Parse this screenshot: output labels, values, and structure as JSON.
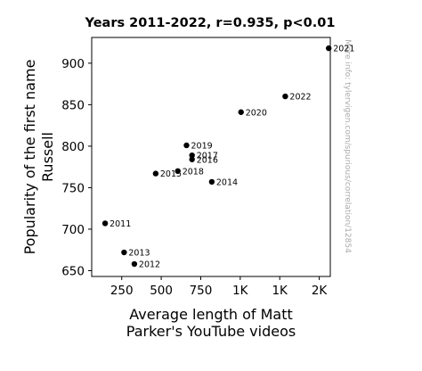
{
  "chart_data": {
    "type": "scatter",
    "title": "Years 2011-2022, r=0.935, p<0.01",
    "xlabel": "Average length of Matt Parker's YouTube videos",
    "xlabel_lines": [
      "Average length of Matt",
      "Parker's YouTube videos"
    ],
    "ylabel": "Popularity of the first name Russell",
    "ylabel_lines": [
      "Popularity of the first name",
      "Russell"
    ],
    "watermark": "More info: tylervigen.com/spurious/correlation/12854",
    "xlim": [
      60,
      1570
    ],
    "ylim": [
      643,
      931
    ],
    "x_ticks": [
      {
        "value": 250,
        "label": "250"
      },
      {
        "value": 500,
        "label": "500"
      },
      {
        "value": 750,
        "label": "750"
      },
      {
        "value": 1000,
        "label": "1K"
      },
      {
        "value": 1250,
        "label": "1K"
      },
      {
        "value": 1500,
        "label": "2K"
      }
    ],
    "y_ticks": [
      650,
      700,
      750,
      800,
      850,
      900
    ],
    "grid": false,
    "points": [
      {
        "x": 145,
        "y": 707,
        "label": "2011"
      },
      {
        "x": 330,
        "y": 658,
        "label": "2012"
      },
      {
        "x": 265,
        "y": 672,
        "label": "2013"
      },
      {
        "x": 820,
        "y": 757,
        "label": "2014"
      },
      {
        "x": 465,
        "y": 767,
        "label": "2015"
      },
      {
        "x": 695,
        "y": 784,
        "label": "2016"
      },
      {
        "x": 695,
        "y": 789,
        "label": "2017"
      },
      {
        "x": 605,
        "y": 770,
        "label": "2018"
      },
      {
        "x": 660,
        "y": 801,
        "label": "2019"
      },
      {
        "x": 1005,
        "y": 841,
        "label": "2020"
      },
      {
        "x": 1560,
        "y": 918,
        "label": "2021"
      },
      {
        "x": 1285,
        "y": 860,
        "label": "2022"
      }
    ]
  }
}
